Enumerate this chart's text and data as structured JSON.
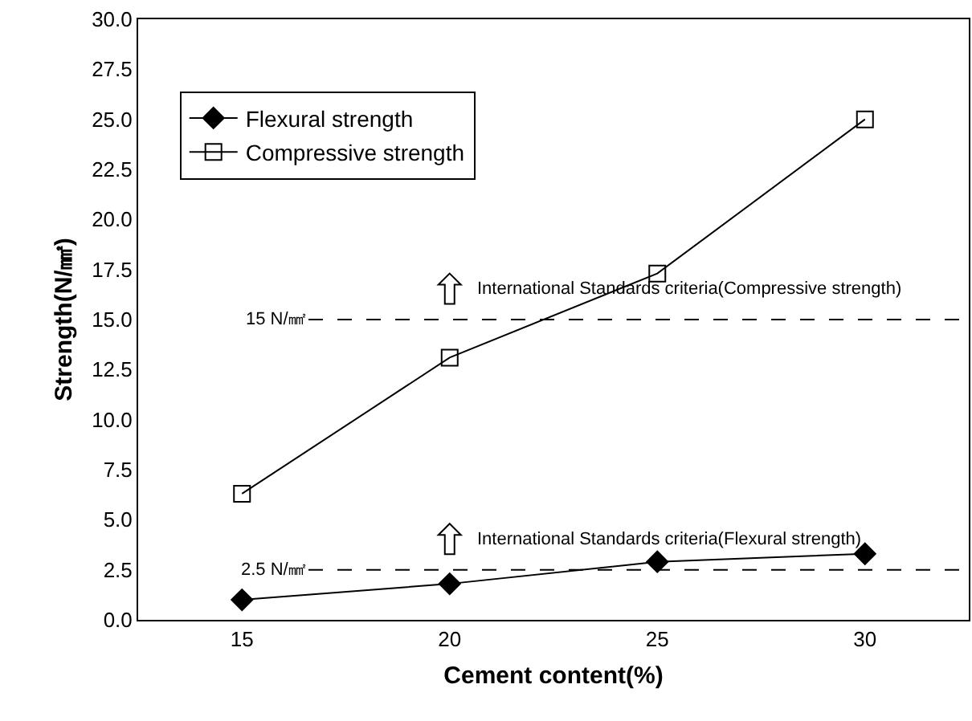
{
  "chart_data": {
    "type": "line",
    "xlabel": "Cement content(%)",
    "ylabel": "Strength(N/㎟)",
    "categories": [
      "15",
      "20",
      "25",
      "30"
    ],
    "series": [
      {
        "name": "Flexural strength",
        "color": "#000000",
        "marker": "diamond",
        "values": [
          1.0,
          1.8,
          2.9,
          3.3
        ]
      },
      {
        "name": "Compressive strength",
        "color": "#000000",
        "marker": "square",
        "values": [
          6.3,
          13.1,
          17.3,
          25.0
        ]
      }
    ],
    "ylim": [
      0,
      30
    ],
    "yticks": [
      {
        "value": 0,
        "label": "0.0"
      },
      {
        "value": 2.5,
        "label": "2.5"
      },
      {
        "value": 5,
        "label": "5.0"
      },
      {
        "value": 7.5,
        "label": "7.5"
      },
      {
        "value": 10,
        "label": "10.0"
      },
      {
        "value": 12.5,
        "label": "12.5"
      },
      {
        "value": 15,
        "label": "15.0"
      },
      {
        "value": 17.5,
        "label": "17.5"
      },
      {
        "value": 20,
        "label": "20.0"
      },
      {
        "value": 22.5,
        "label": "22.5"
      },
      {
        "value": 25,
        "label": "25.0"
      },
      {
        "value": 27.5,
        "label": "27.5"
      },
      {
        "value": 30,
        "label": "30.0"
      }
    ],
    "ref_lines": [
      {
        "axis": "y",
        "value": 15,
        "label": "15 N/㎟",
        "line_style": "dashed"
      },
      {
        "axis": "y",
        "value": 2.5,
        "label": "2.5 N/㎟",
        "line_style": "dashed"
      }
    ],
    "annotations": [
      "International Standards criteria(Compressive strength)",
      "International Standards criteria(Flexural strength)"
    ],
    "grid": false,
    "legend": "top left",
    "line_style": "solid"
  }
}
